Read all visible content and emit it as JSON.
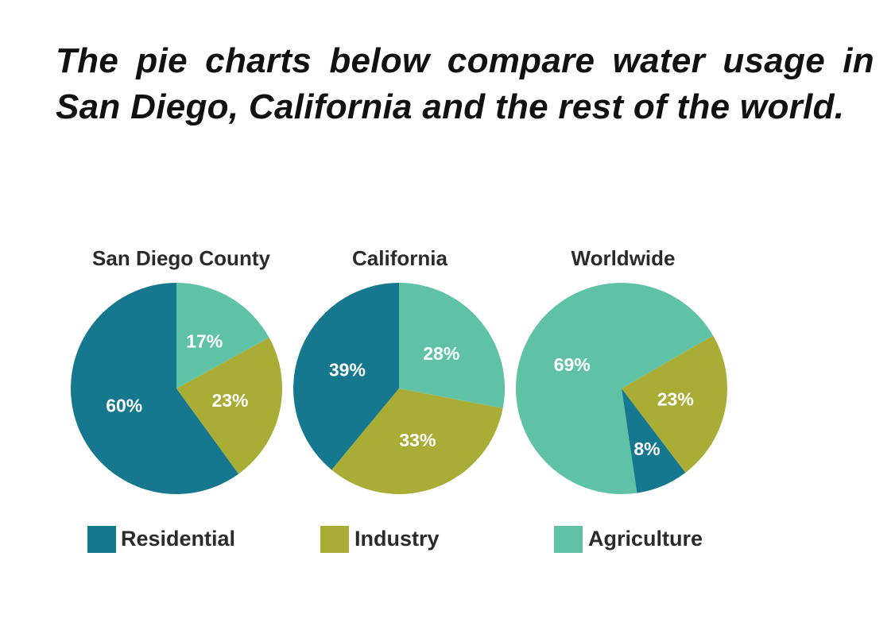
{
  "heading": "The pie charts below compare water usage in San Diego, California and the rest of the world.",
  "chart_data": [
    {
      "type": "pie",
      "title": "San Diego County",
      "labels": [
        "Residential",
        "Industry",
        "Agriculture"
      ],
      "values": [
        60,
        23,
        17
      ],
      "value_labels": [
        "60%",
        "23%",
        "17%"
      ]
    },
    {
      "type": "pie",
      "title": "California",
      "labels": [
        "Residential",
        "Industry",
        "Agriculture"
      ],
      "values": [
        39,
        33,
        28
      ],
      "value_labels": [
        "39%",
        "33%",
        "28%"
      ]
    },
    {
      "type": "pie",
      "title": "Worldwide",
      "labels": [
        "Residential",
        "Industry",
        "Agriculture"
      ],
      "values": [
        8,
        23,
        69
      ],
      "value_labels": [
        "8%",
        "23%",
        "69%"
      ]
    }
  ],
  "legend": [
    {
      "label": "Residential",
      "color": "#15788f"
    },
    {
      "label": "Industry",
      "color": "#a9ac35"
    },
    {
      "label": "Agriculture",
      "color": "#5fc2a6"
    }
  ]
}
